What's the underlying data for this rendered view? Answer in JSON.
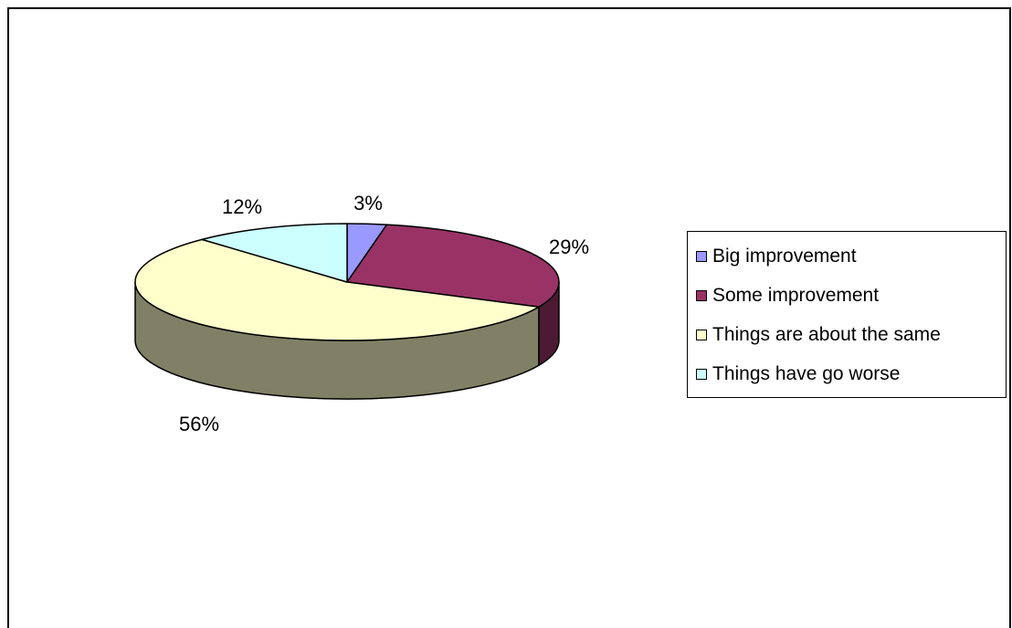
{
  "chart_data": {
    "type": "pie",
    "style": "3d",
    "title": "",
    "slices": [
      {
        "label": "Big improvement",
        "value": 3,
        "display": "3%",
        "color": "#9999ff",
        "side_color": "#4d4d80"
      },
      {
        "label": "Some improvement",
        "value": 29,
        "display": "29%",
        "color": "#993366",
        "side_color": "#4d1a33"
      },
      {
        "label": "Things are about the same",
        "value": 56,
        "display": "56%",
        "color": "#ffffcc",
        "side_color": "#808066"
      },
      {
        "label": "Things have go worse",
        "value": 12,
        "display": "12%",
        "color": "#ccffff",
        "side_color": "#668080"
      }
    ],
    "legend": {
      "placement": "right"
    }
  }
}
